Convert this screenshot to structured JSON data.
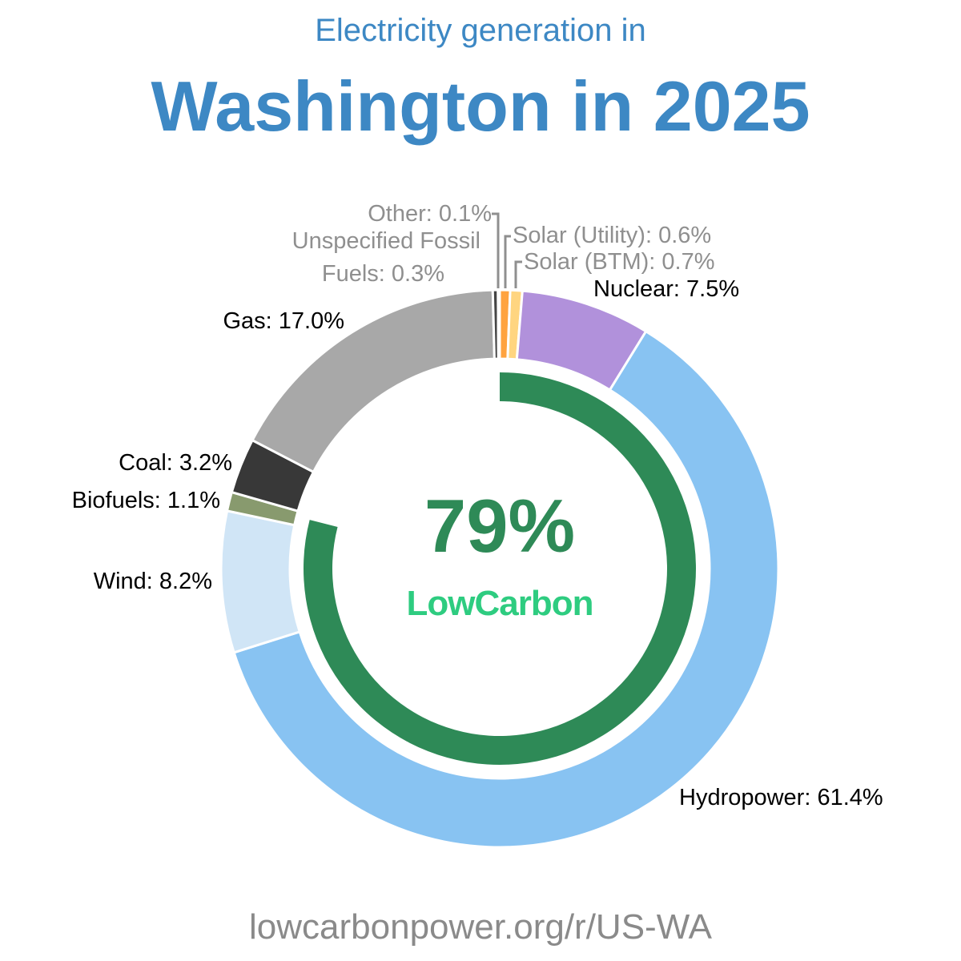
{
  "header": {
    "subtitle": "Electricity generation in",
    "title": "Washington in 2025"
  },
  "center": {
    "low_carbon_pct": "79%",
    "brand": "LowCarbon",
    "ring_color": "#2e8a57",
    "brand_color": "#2ecc80"
  },
  "footer": {
    "url": "lowcarbonpower.org/r/US-WA"
  },
  "labels": {
    "other": "Other: 0.1%",
    "unspecified_1": "Unspecified Fossil",
    "unspecified_2": "Fuels: 0.3%",
    "solar_utility": "Solar (Utility): 0.6%",
    "solar_btm": "Solar (BTM): 0.7%",
    "nuclear": "Nuclear: 7.5%",
    "gas": "Gas: 17.0%",
    "coal": "Coal: 3.2%",
    "biofuels": "Biofuels: 1.1%",
    "wind": "Wind: 8.2%",
    "hydro": "Hydropower: 61.4%"
  },
  "chart_data": {
    "type": "pie",
    "title": "Washington in 2025",
    "subtitle": "Electricity generation in",
    "variant": "donut",
    "start_angle_deg": 0,
    "direction": "clockwise",
    "categories": [
      "Solar (Utility)",
      "Solar (BTM)",
      "Nuclear",
      "Hydropower",
      "Wind",
      "Biofuels",
      "Coal",
      "Gas",
      "Unspecified Fossil Fuels",
      "Other"
    ],
    "values": [
      0.6,
      0.7,
      7.5,
      61.4,
      8.2,
      1.1,
      3.2,
      17.0,
      0.3,
      0.1
    ],
    "unit": "%",
    "colors": [
      "#ffa33f",
      "#ffd580",
      "#b191db",
      "#88c3f2",
      "#d0e5f6",
      "#889a6e",
      "#383838",
      "#a8a8a8",
      "#454545",
      "#b0b0b0"
    ],
    "inner_ring": {
      "label": "LowCarbon",
      "value": 79,
      "unit": "%",
      "color": "#2e8a57"
    },
    "legend": "inline labels",
    "source": "lowcarbonpower.org/r/US-WA"
  }
}
